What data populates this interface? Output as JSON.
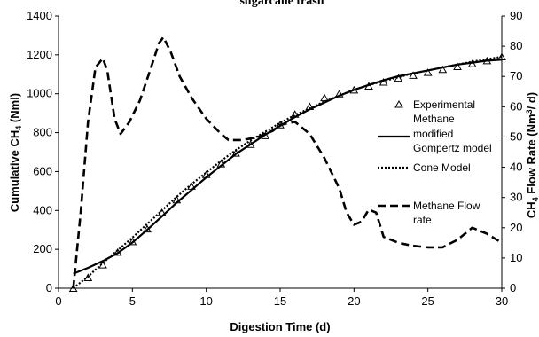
{
  "chart_data": {
    "type": "line",
    "title": "sugarcane trash",
    "xlabel": "Digestion Time (d)",
    "ylabel": "Cumulative CH4 (Nml)",
    "ylabel_parts": {
      "pre": "Cumulative CH",
      "sub": "4",
      "post": " (Nml)"
    },
    "y2label": "CH4 Flow Rate (Nm3/ d)",
    "y2label_parts": {
      "pre": "CH",
      "sub1": "4",
      "mid": " Flow Rate (Nm",
      "sup": "3",
      "post": "/ d)"
    },
    "xlim": [
      0,
      30
    ],
    "ylim": [
      0,
      1400
    ],
    "y2lim": [
      0,
      90
    ],
    "x_ticks": [
      0,
      5,
      10,
      15,
      20,
      25,
      30
    ],
    "y_ticks": [
      0,
      200,
      400,
      600,
      800,
      1000,
      1200,
      1400
    ],
    "y2_ticks": [
      0,
      10,
      20,
      30,
      40,
      50,
      60,
      70,
      80,
      90
    ],
    "grid": false,
    "legend_placement": "right",
    "legend": [
      {
        "lines": [
          "Experimental",
          "Methane"
        ]
      },
      {
        "lines": [
          "modified",
          "Gompertz model"
        ]
      },
      {
        "lines": [
          "Cone Model"
        ]
      },
      {
        "lines": [
          "Methane Flow",
          "rate"
        ]
      }
    ],
    "series": [
      {
        "name": "Experimental Methane",
        "axis": "left",
        "style": "triangle-markers",
        "x": [
          1,
          2,
          3,
          4,
          5,
          6,
          7,
          8,
          9,
          10,
          11,
          12,
          13,
          14,
          15,
          16,
          17,
          18,
          19,
          20,
          21,
          22,
          23,
          24,
          25,
          26,
          27,
          28,
          29,
          30
        ],
        "y": [
          0,
          55,
          120,
          185,
          240,
          305,
          390,
          455,
          525,
          585,
          640,
          695,
          740,
          785,
          840,
          895,
          935,
          980,
          1000,
          1020,
          1040,
          1060,
          1080,
          1095,
          1110,
          1125,
          1140,
          1155,
          1170,
          1190
        ]
      },
      {
        "name": "modified Gompertz model",
        "axis": "left",
        "style": "solid",
        "x": [
          1,
          2,
          3,
          4,
          5,
          6,
          7,
          8,
          9,
          10,
          11,
          12,
          13,
          14,
          15,
          16,
          17,
          18,
          19,
          20,
          21,
          22,
          23,
          24,
          25,
          26,
          27,
          28,
          29,
          30
        ],
        "y": [
          75,
          105,
          140,
          180,
          235,
          300,
          370,
          440,
          505,
          570,
          630,
          690,
          740,
          790,
          835,
          880,
          920,
          955,
          990,
          1020,
          1045,
          1070,
          1090,
          1105,
          1120,
          1135,
          1150,
          1160,
          1170,
          1175
        ]
      },
      {
        "name": "Cone Model",
        "axis": "left",
        "style": "dotted",
        "x": [
          1,
          2,
          3,
          4,
          5,
          6,
          7,
          8,
          9,
          10,
          11,
          12,
          13,
          14,
          15,
          16,
          17,
          18,
          19,
          20,
          21,
          22,
          23,
          24,
          25,
          26,
          27,
          28,
          29,
          30
        ],
        "y": [
          0,
          60,
          130,
          195,
          260,
          330,
          400,
          470,
          535,
          595,
          655,
          710,
          760,
          805,
          850,
          890,
          925,
          960,
          990,
          1020,
          1045,
          1065,
          1085,
          1105,
          1120,
          1135,
          1150,
          1165,
          1178,
          1190
        ]
      },
      {
        "name": "Methane Flow rate",
        "axis": "right",
        "style": "dashed",
        "x": [
          1,
          1.5,
          2,
          2.5,
          3,
          3.3,
          3.8,
          4.2,
          4.8,
          5.5,
          6.2,
          6.8,
          7.1,
          7.6,
          8.2,
          9,
          10,
          11,
          11.5,
          12.5,
          13.5,
          14.5,
          15,
          16,
          17,
          18,
          19,
          19.5,
          20,
          20.5,
          21,
          21.5,
          22,
          23,
          24,
          25,
          26,
          27,
          28,
          29,
          30
        ],
        "y": [
          0,
          25,
          55,
          73,
          76,
          72,
          56,
          51,
          55,
          62,
          72,
          81,
          83,
          78,
          70,
          63,
          56,
          51,
          49,
          49,
          50,
          52,
          54,
          55,
          51,
          43,
          33,
          25,
          21,
          22,
          26,
          25,
          17,
          15,
          14,
          13.5,
          13.5,
          16,
          20,
          18,
          15
        ]
      }
    ]
  }
}
